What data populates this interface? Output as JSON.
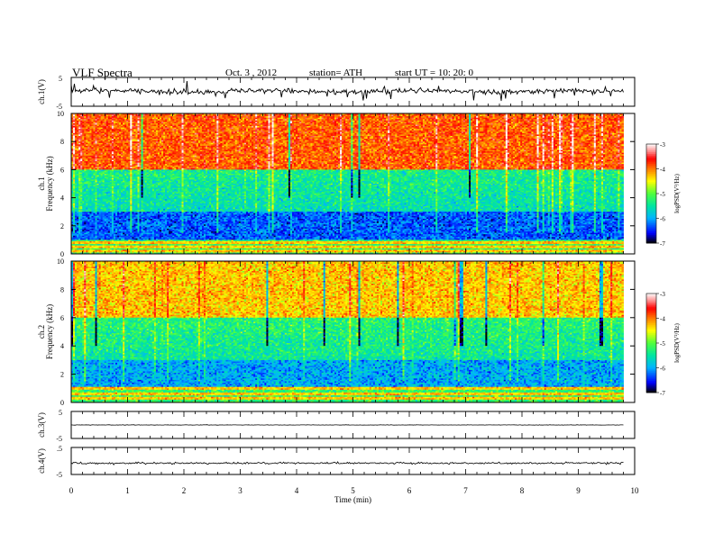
{
  "header": {
    "title": "VLF  Spectra",
    "date": "Oct. 3  , 2012",
    "station": "station= ATH",
    "start": "start  UT  =    10: 20: 0"
  },
  "chart_data": [
    {
      "panel": "ch1-waveform",
      "type": "line",
      "ylabel": "ch.1(V)",
      "ylim": [
        -5,
        5
      ],
      "yticks": [
        "5",
        "-5"
      ],
      "xlim": [
        0,
        10
      ],
      "data_extent_min": 9.8,
      "style": "dense noisy waveform, mostly around -0.5 to 1.5 V with spikes up to about ±4 V",
      "color": "#000000"
    },
    {
      "panel": "ch1-spectrogram",
      "type": "heatmap",
      "ylabel": "Frequency  (kHz)",
      "channel_label": "ch.1",
      "ylim": [
        0,
        10
      ],
      "yticks": [
        "0",
        "2",
        "4",
        "6",
        "8",
        "10"
      ],
      "xlim": [
        0,
        10
      ],
      "data_extent_min": 9.8,
      "colorbar": {
        "label": "logPSD(V²/Hz)",
        "range": [
          -7,
          -3
        ],
        "ticks": [
          "-3",
          "-4",
          "-5",
          "-6",
          "-7"
        ]
      },
      "features": {
        "high_band_kHz": [
          6,
          10
        ],
        "high_band_logpsd": -3.9,
        "mid_band_kHz": [
          3,
          6
        ],
        "mid_band_logpsd": -5.6,
        "low_band_kHz": [
          1,
          3
        ],
        "low_band_logpsd": -6.3,
        "lines_kHz": [
          0.2,
          0.5,
          0.8
        ]
      }
    },
    {
      "panel": "ch2-spectrogram",
      "type": "heatmap",
      "ylabel": "Frequency  (kHz)",
      "channel_label": "ch.2",
      "ylim": [
        0,
        10
      ],
      "yticks": [
        "0",
        "2",
        "4",
        "6",
        "8",
        "10"
      ],
      "xlim": [
        0,
        10
      ],
      "data_extent_min": 9.8,
      "colorbar": {
        "label": "logPSD(V²/Hz)",
        "range": [
          -7,
          -3
        ],
        "ticks": [
          "-3",
          "-4",
          "-5",
          "-6",
          "-7"
        ]
      },
      "features": {
        "high_band_kHz": [
          6,
          10
        ],
        "high_band_logpsd": -4.3,
        "mid_band_kHz": [
          3,
          6
        ],
        "mid_band_logpsd": -5.5,
        "low_band_kHz": [
          1,
          3
        ],
        "low_band_logpsd": -6.0,
        "lines_kHz": [
          0.3,
          0.6,
          1.0
        ]
      }
    },
    {
      "panel": "ch3-waveform",
      "type": "line",
      "ylabel": "ch.3(V)",
      "ylim": [
        -5,
        5
      ],
      "yticks": [
        "5",
        "-5"
      ],
      "xlim": [
        0,
        10
      ],
      "data_extent_min": 9.8,
      "style": "nearly flat line at about 0 V",
      "color": "#000000"
    },
    {
      "panel": "ch4-waveform",
      "type": "line",
      "ylabel": "ch.4(V)",
      "ylim": [
        -5,
        5
      ],
      "yticks": [
        ".5",
        "-5"
      ],
      "xlim": [
        0,
        10
      ],
      "data_extent_min": 9.8,
      "style": "low-amplitude noise at about -0.8 V",
      "color": "#000000"
    }
  ],
  "xaxis": {
    "label": "Time  (min)",
    "ticks": [
      "0",
      "1",
      "2",
      "3",
      "4",
      "5",
      "6",
      "7",
      "8",
      "9",
      "10"
    ]
  },
  "colors": {
    "colormap": [
      "#000000",
      "#0000ff",
      "#00c8ff",
      "#00ff64",
      "#ffff00",
      "#ff0000",
      "#ffffff"
    ]
  }
}
